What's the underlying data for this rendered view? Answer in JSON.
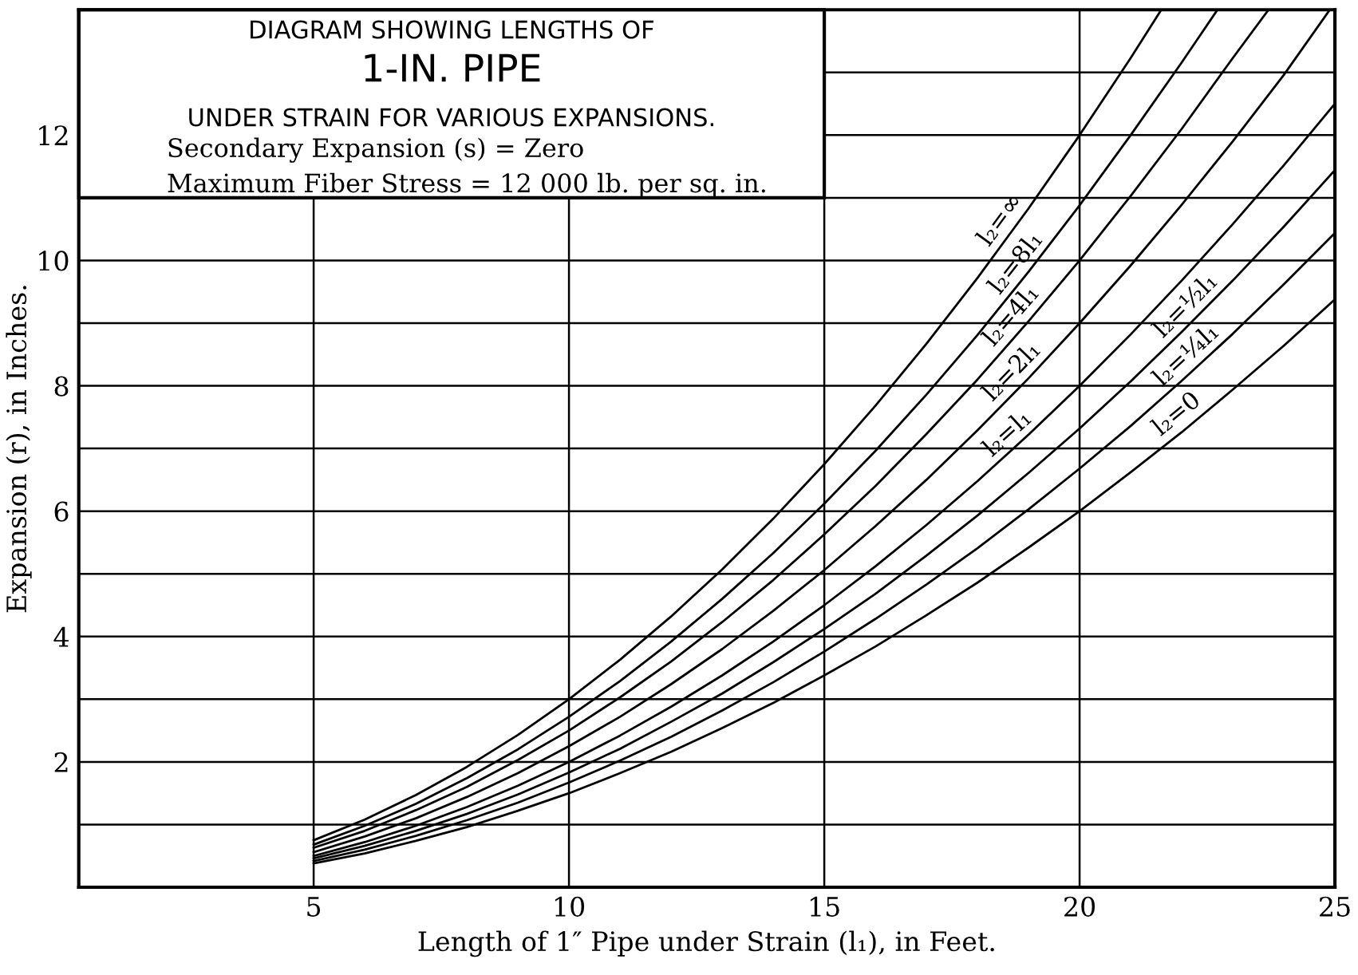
{
  "chart_data": {
    "type": "line",
    "title": "DIAGRAM SHOWING LENGTHS OF\n1-IN. PIPE\nUNDER STRAIN FOR VARIOUS EXPANSIONS.",
    "xlabel": "Length of 1″ Pipe under Strain (l₁), in Feet.",
    "ylabel": "Expansion (r), in Inches.",
    "xlim": [
      0.4,
      25
    ],
    "ylim": [
      0,
      14
    ],
    "xticks": [
      5,
      10,
      15,
      20,
      25
    ],
    "yticks": [
      {
        "value": 1,
        "label": null
      },
      2,
      {
        "value": 3,
        "label": null
      },
      4,
      {
        "value": 5,
        "label": null
      },
      6,
      {
        "value": 7,
        "label": null
      },
      8,
      {
        "value": 9,
        "label": null
      },
      10,
      {
        "value": 11,
        "label": null
      },
      12,
      {
        "value": 13,
        "label": null
      }
    ],
    "grid": true,
    "legend": false,
    "marker": "none",
    "line_style": "solid",
    "series": [
      {
        "color": "#000000",
        "x": [
          5,
          6,
          7,
          8,
          9,
          10,
          11,
          12,
          13,
          14,
          15,
          16,
          17,
          18,
          19,
          20,
          21,
          21.6
        ],
        "values": [
          0.75,
          1.08,
          1.47,
          1.92,
          2.43,
          3.0,
          3.63,
          4.32,
          5.07,
          5.88,
          6.75,
          7.68,
          8.67,
          9.72,
          10.83,
          12.0,
          13.23,
          14.0
        ]
      },
      {
        "color": "#000000",
        "x": [
          5,
          6,
          7,
          8,
          9,
          10,
          11,
          12,
          13,
          14,
          15,
          16,
          17,
          18,
          19,
          20,
          21,
          22,
          22.7
        ],
        "values": [
          0.68,
          0.98,
          1.33,
          1.74,
          2.2,
          2.72,
          3.29,
          3.92,
          4.6,
          5.33,
          6.12,
          6.96,
          7.86,
          8.81,
          9.82,
          10.88,
          12.0,
          13.16,
          14.0
        ]
      },
      {
        "color": "#000000",
        "x": [
          5,
          6,
          7,
          8,
          9,
          10,
          11,
          12,
          13,
          14,
          15,
          16,
          17,
          18,
          19,
          20,
          21,
          22,
          23,
          23.7
        ],
        "values": [
          0.63,
          0.9,
          1.23,
          1.6,
          2.03,
          2.5,
          3.03,
          3.6,
          4.23,
          4.9,
          5.63,
          6.4,
          7.23,
          8.1,
          9.03,
          10.0,
          11.03,
          12.1,
          13.23,
          14.0
        ]
      },
      {
        "color": "#000000",
        "x": [
          5,
          6,
          7,
          8,
          9,
          10,
          11,
          12,
          13,
          14,
          15,
          16,
          17,
          18,
          19,
          20,
          21,
          22,
          23,
          24,
          24.9
        ],
        "values": [
          0.56,
          0.81,
          1.1,
          1.44,
          1.82,
          2.25,
          2.72,
          3.24,
          3.8,
          4.41,
          5.06,
          5.76,
          6.5,
          7.29,
          8.12,
          9.0,
          9.92,
          10.89,
          11.9,
          12.96,
          14.0
        ]
      },
      {
        "color": "#000000",
        "x": [
          5,
          6,
          7,
          8,
          9,
          10,
          11,
          12,
          13,
          14,
          15,
          16,
          17,
          18,
          19,
          20,
          21,
          22,
          23,
          24,
          25
        ],
        "values": [
          0.5,
          0.72,
          0.98,
          1.28,
          1.62,
          2.0,
          2.42,
          2.88,
          3.38,
          3.92,
          4.5,
          5.12,
          5.78,
          6.48,
          7.22,
          8.0,
          8.82,
          9.68,
          10.58,
          11.52,
          12.5
        ]
      },
      {
        "color": "#000000",
        "x": [
          5,
          6,
          7,
          8,
          9,
          10,
          11,
          12,
          13,
          14,
          15,
          16,
          17,
          18,
          19,
          20,
          21,
          22,
          23,
          24,
          25
        ],
        "values": [
          0.46,
          0.66,
          0.9,
          1.17,
          1.48,
          1.83,
          2.21,
          2.64,
          3.09,
          3.59,
          4.12,
          4.68,
          5.29,
          5.93,
          6.61,
          7.32,
          8.07,
          8.86,
          9.68,
          10.54,
          11.44
        ]
      },
      {
        "color": "#000000",
        "x": [
          5,
          6,
          7,
          8,
          9,
          10,
          11,
          12,
          13,
          14,
          15,
          16,
          17,
          18,
          19,
          20,
          21,
          22,
          23,
          24,
          25
        ],
        "values": [
          0.42,
          0.6,
          0.82,
          1.07,
          1.35,
          1.67,
          2.02,
          2.4,
          2.82,
          3.27,
          3.76,
          4.28,
          4.83,
          5.41,
          6.03,
          6.68,
          7.36,
          8.08,
          8.83,
          9.62,
          10.44
        ]
      },
      {
        "color": "#000000",
        "x": [
          5,
          6,
          7,
          8,
          9,
          10,
          11,
          12,
          13,
          14,
          15,
          16,
          17,
          18,
          19,
          20,
          21,
          22,
          23,
          24,
          25
        ],
        "values": [
          0.38,
          0.54,
          0.74,
          0.96,
          1.22,
          1.5,
          1.82,
          2.16,
          2.54,
          2.94,
          3.38,
          3.84,
          4.34,
          4.86,
          5.42,
          6.0,
          6.62,
          7.26,
          7.94,
          8.64,
          9.38
        ]
      }
    ],
    "annotations": [
      "Secondary Expansion (s) = Zero",
      "Maximum Fiber Stress = 12 000 lb. per sq. in.",
      {
        "text": "l₂=∞",
        "x": 18.7,
        "y": 10.5
      },
      {
        "text": "l₂=8l₁",
        "x": 19.0,
        "y": 9.8
      },
      {
        "text": "l₂=4l₁",
        "x": 18.9,
        "y": 8.95
      },
      {
        "text": "l₂=2l₁",
        "x": 18.9,
        "y": 8.05
      },
      {
        "text": "l₂=l₁",
        "x": 18.8,
        "y": 7.05
      },
      {
        "text": "l₂=½l₁",
        "x": 22.3,
        "y": 9.1
      },
      {
        "text": "l₂=¼l₁",
        "x": 22.3,
        "y": 8.3
      },
      {
        "text": "l₂=0",
        "x": 22.1,
        "y": 7.35
      }
    ]
  }
}
